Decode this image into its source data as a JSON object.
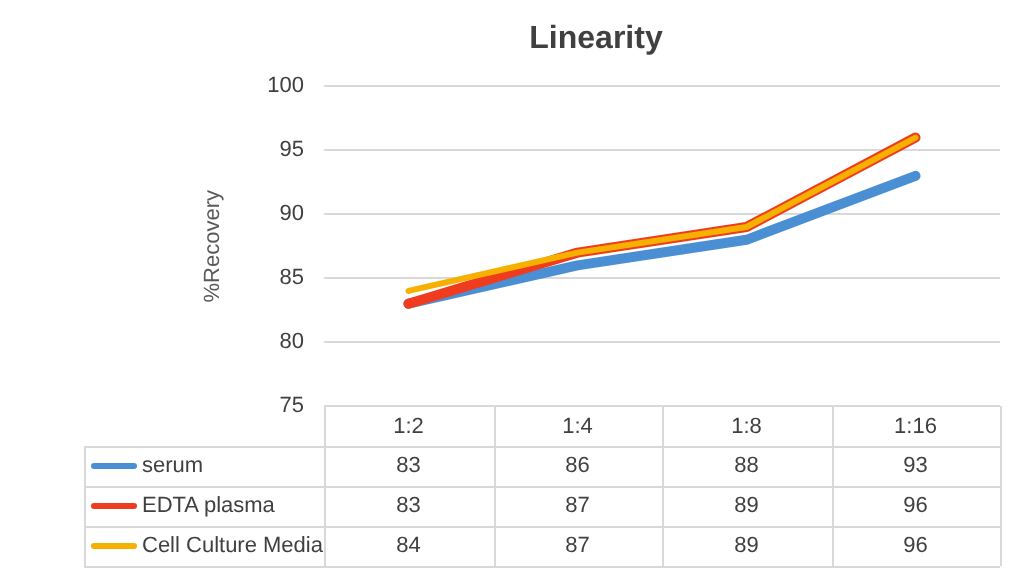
{
  "chart_data": {
    "type": "line",
    "title": "Linearity",
    "ylabel": "%Recovery",
    "categories": [
      "1:2",
      "1:4",
      "1:8",
      "1:16"
    ],
    "series": [
      {
        "name": "serum",
        "color": "#4a8fd4",
        "values": [
          83,
          86,
          88,
          93
        ]
      },
      {
        "name": "EDTA plasma",
        "color": "#f03c1e",
        "values": [
          83,
          87,
          89,
          96
        ]
      },
      {
        "name": "Cell Culture Media",
        "color": "#f5b000",
        "values": [
          84,
          87,
          89,
          96
        ]
      }
    ],
    "ylim": [
      75,
      100
    ],
    "yticks": [
      75,
      80,
      85,
      90,
      95,
      100
    ],
    "grid": "y",
    "legend": "bottom",
    "data_labels": true,
    "marker": "none",
    "line_style": "solid"
  }
}
